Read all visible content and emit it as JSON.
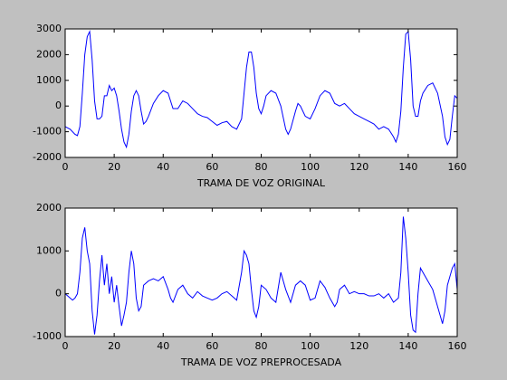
{
  "chart_data": [
    {
      "type": "line",
      "xlabel": "TRAMA DE VOZ ORIGINAL",
      "xlim": [
        0,
        160
      ],
      "ylim": [
        -2000,
        3000
      ],
      "xticks": [
        0,
        20,
        40,
        60,
        80,
        100,
        120,
        140,
        160
      ],
      "yticks": [
        -2000,
        -1000,
        0,
        1000,
        2000,
        3000
      ],
      "x": [
        0,
        2,
        4,
        5,
        6,
        7,
        8,
        9,
        10,
        11,
        12,
        13,
        14,
        15,
        16,
        17,
        18,
        19,
        20,
        21,
        22,
        23,
        24,
        25,
        26,
        27,
        28,
        29,
        30,
        31,
        32,
        33,
        34,
        36,
        38,
        40,
        42,
        44,
        46,
        48,
        50,
        52,
        54,
        56,
        58,
        60,
        62,
        64,
        66,
        68,
        70,
        72,
        73,
        74,
        75,
        76,
        77,
        78,
        79,
        80,
        81,
        82,
        84,
        86,
        88,
        90,
        91,
        92,
        94,
        95,
        96,
        98,
        100,
        102,
        104,
        106,
        108,
        110,
        112,
        114,
        116,
        118,
        120,
        122,
        124,
        126,
        128,
        130,
        132,
        134,
        135,
        136,
        137,
        138,
        139,
        140,
        141,
        142,
        143,
        144,
        145,
        146,
        148,
        150,
        152,
        154,
        155,
        156,
        157,
        158,
        159,
        160
      ],
      "series": [
        {
          "color": "#0000ff",
          "values": [
            -800,
            -900,
            -1100,
            -1150,
            -800,
            500,
            2000,
            2700,
            2900,
            1800,
            200,
            -500,
            -500,
            -400,
            400,
            400,
            800,
            600,
            700,
            400,
            -200,
            -900,
            -1400,
            -1600,
            -1100,
            -200,
            400,
            600,
            400,
            -200,
            -700,
            -600,
            -400,
            100,
            400,
            600,
            500,
            -100,
            -100,
            200,
            100,
            -100,
            -300,
            -400,
            -450,
            -600,
            -750,
            -650,
            -600,
            -800,
            -900,
            -500,
            500,
            1500,
            2100,
            2100,
            1500,
            500,
            -100,
            -300,
            0,
            400,
            600,
            500,
            0,
            -900,
            -1100,
            -900,
            -200,
            100,
            0,
            -400,
            -500,
            -100,
            400,
            600,
            500,
            100,
            0,
            100,
            -100,
            -300,
            -400,
            -500,
            -600,
            -700,
            -900,
            -800,
            -900,
            -1200,
            -1400,
            -1100,
            -200,
            1500,
            2800,
            2900,
            1800,
            0,
            -400,
            -400,
            200,
            500,
            800,
            900,
            500,
            -400,
            -1200,
            -1500,
            -1300,
            -400,
            400,
            300
          ]
        }
      ]
    },
    {
      "type": "line",
      "xlabel": "TRAMA DE VOZ PREPROCESADA",
      "xlim": [
        0,
        160
      ],
      "ylim": [
        -1000,
        2000
      ],
      "xticks": [
        0,
        20,
        40,
        60,
        80,
        100,
        120,
        140,
        160
      ],
      "yticks": [
        -1000,
        0,
        1000,
        2000
      ],
      "x": [
        0,
        2,
        3,
        4,
        5,
        6,
        7,
        8,
        9,
        10,
        11,
        12,
        13,
        14,
        15,
        16,
        17,
        18,
        19,
        20,
        21,
        22,
        23,
        24,
        25,
        26,
        27,
        28,
        29,
        30,
        31,
        32,
        34,
        36,
        38,
        40,
        42,
        43,
        44,
        46,
        48,
        50,
        52,
        54,
        56,
        58,
        60,
        62,
        64,
        66,
        68,
        70,
        72,
        73,
        74,
        75,
        76,
        77,
        78,
        79,
        80,
        82,
        84,
        86,
        88,
        90,
        92,
        94,
        96,
        98,
        100,
        102,
        104,
        106,
        108,
        110,
        111,
        112,
        114,
        116,
        118,
        120,
        122,
        124,
        126,
        128,
        130,
        132,
        134,
        136,
        137,
        138,
        139,
        140,
        141,
        142,
        143,
        144,
        145,
        146,
        148,
        150,
        152,
        154,
        155,
        156,
        158,
        159,
        160
      ],
      "series": [
        {
          "color": "#0000ff",
          "values": [
            0,
            -100,
            -150,
            -100,
            0,
            500,
            1300,
            1550,
            1000,
            700,
            -400,
            -950,
            -500,
            300,
            900,
            200,
            700,
            0,
            400,
            -200,
            200,
            -300,
            -750,
            -500,
            -200,
            500,
            1000,
            700,
            -100,
            -400,
            -300,
            200,
            300,
            350,
            300,
            400,
            100,
            -100,
            -200,
            100,
            200,
            0,
            -100,
            50,
            -50,
            -100,
            -150,
            -100,
            0,
            50,
            -50,
            -150,
            500,
            1000,
            900,
            700,
            100,
            -400,
            -550,
            -300,
            200,
            100,
            -100,
            -200,
            500,
            100,
            -200,
            200,
            300,
            200,
            -150,
            -100,
            300,
            150,
            -100,
            -300,
            -200,
            100,
            200,
            0,
            50,
            0,
            0,
            -50,
            -50,
            0,
            -100,
            0,
            -200,
            -100,
            500,
            1800,
            1300,
            500,
            -500,
            -850,
            -900,
            0,
            600,
            500,
            300,
            100,
            -300,
            -700,
            -400,
            200,
            600,
            700,
            100
          ]
        }
      ]
    }
  ]
}
